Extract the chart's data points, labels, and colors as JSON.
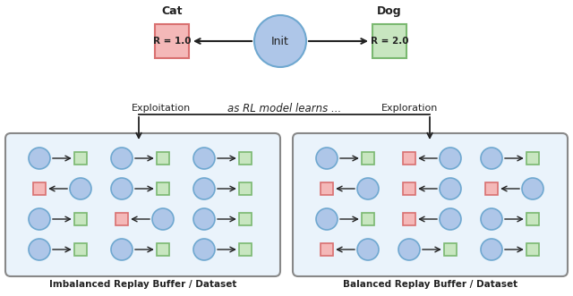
{
  "fig_width": 6.4,
  "fig_height": 3.31,
  "dpi": 100,
  "bg_color": "#ffffff",
  "circle_color": "#aec6e8",
  "circle_edge": "#6fa8d0",
  "diamond_green_fill": "#c8e6c0",
  "diamond_green_edge": "#7ab870",
  "diamond_red_fill": "#f4b8b8",
  "diamond_red_edge": "#d97070",
  "init_circle_fill": "#aec6e8",
  "init_circle_edge": "#6fa8d0",
  "box_fill": "#eaf3fb",
  "box_edge": "#888888",
  "arrow_color": "#222222",
  "text_color": "#222222",
  "cat_label": "Cat",
  "dog_label": "Dog",
  "init_label": "Init",
  "cat_reward": "R = 1.0",
  "dog_reward": "R = 2.0",
  "exploit_label": "Exploitation",
  "explore_label": "Exploration",
  "mid_label": "as RL model learns ...",
  "left_box_label": "Imbalanced Replay Buffer / Dataset",
  "right_box_label": "Balanced Replay Buffer / Dataset",
  "imbalanced_grid": [
    [
      "C",
      "G",
      "C",
      "G",
      "C",
      "G"
    ],
    [
      "R",
      "C",
      "C",
      "G",
      "C",
      "G"
    ],
    [
      "C",
      "G",
      "R",
      "C",
      "C",
      "G"
    ],
    [
      "C",
      "G",
      "C",
      "G",
      "C",
      "G"
    ]
  ],
  "imbalanced_arrows": [
    [
      0,
      0,
      1
    ],
    [
      0,
      2,
      1
    ],
    [
      0,
      4,
      1
    ],
    [
      1,
      0,
      0
    ],
    [
      1,
      2,
      1
    ],
    [
      1,
      4,
      1
    ],
    [
      2,
      0,
      1
    ],
    [
      2,
      2,
      0
    ],
    [
      2,
      4,
      1
    ],
    [
      3,
      0,
      1
    ],
    [
      3,
      2,
      1
    ],
    [
      3,
      4,
      1
    ]
  ],
  "balanced_grid": [
    [
      "C",
      "G",
      "R",
      "C",
      "C",
      "G"
    ],
    [
      "R",
      "C",
      "R",
      "C",
      "R",
      "C"
    ],
    [
      "C",
      "G",
      "R",
      "C",
      "C",
      "G"
    ],
    [
      "R",
      "C",
      "C",
      "G",
      "C",
      "G"
    ]
  ],
  "balanced_arrows": [
    [
      0,
      0,
      1
    ],
    [
      0,
      2,
      0
    ],
    [
      0,
      4,
      1
    ],
    [
      1,
      0,
      0
    ],
    [
      1,
      2,
      0
    ],
    [
      1,
      4,
      0
    ],
    [
      2,
      0,
      1
    ],
    [
      2,
      2,
      0
    ],
    [
      2,
      4,
      1
    ],
    [
      3,
      0,
      0
    ],
    [
      3,
      2,
      1
    ],
    [
      3,
      4,
      1
    ]
  ]
}
